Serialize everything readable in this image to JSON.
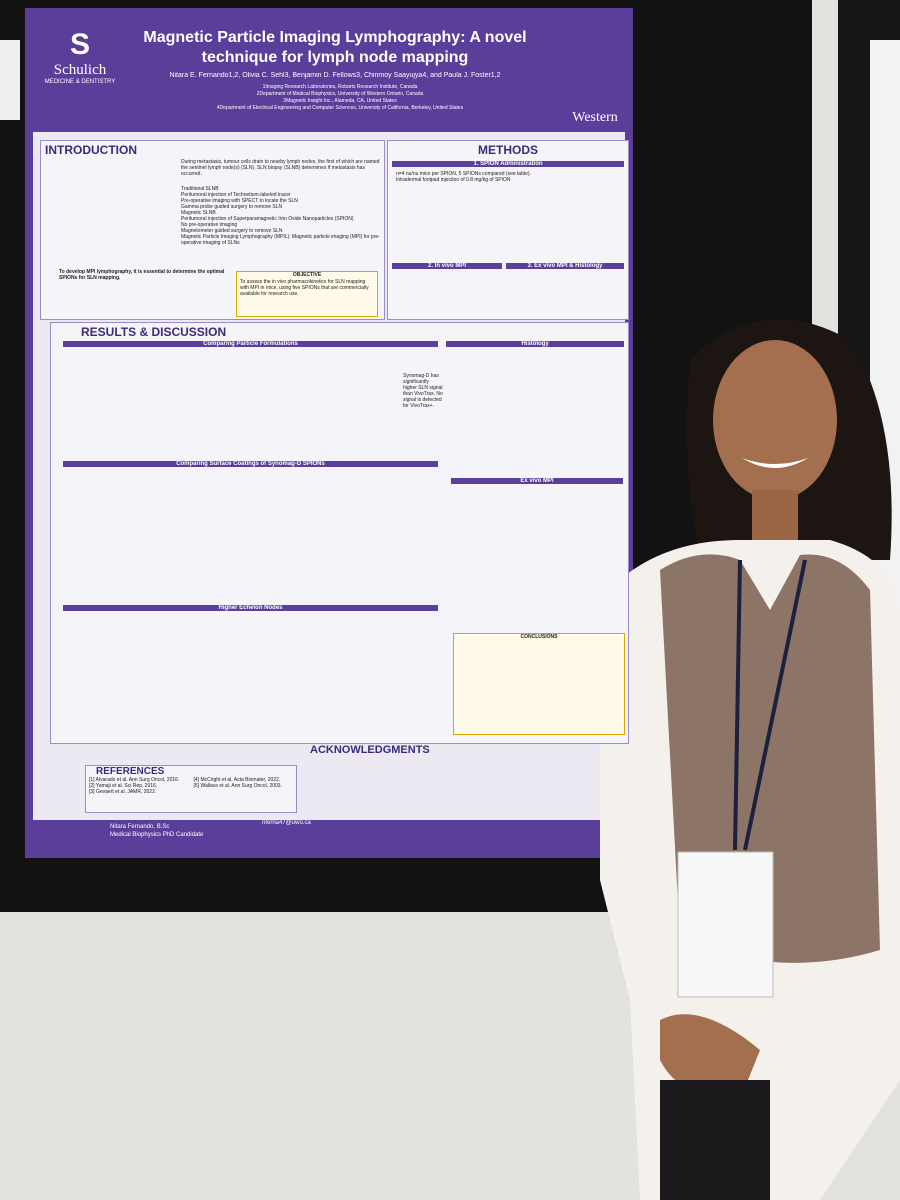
{
  "poster": {
    "logo_left": {
      "name": "Schulich",
      "sub": "MEDICINE & DENTISTRY"
    },
    "title": "Magnetic Particle Imaging Lymphography: A novel technique for lymph node mapping",
    "authors": "Nitara E. Fernando1,2, Olivia C. Sehl3, Benjamin D. Fellows3, Chinmoy Saayujya4, and Paula J. Foster1,2",
    "affiliations": [
      "1Imaging Research Laboratories, Robarts Research Institute, Canada",
      "2Department of Medical Biophysics, University of Western Ontario, Canada",
      "3Magnetic Insight Inc., Alameda, CA, United States",
      "4Department of Electrical Engineering and Computer Sciences, University of California, Berkeley, United States"
    ],
    "logo_right": "Western",
    "introduction": {
      "heading": "INTRODUCTION",
      "text": "During metastasis, tumour cells drain to nearby lymph nodes, the first of which are named the sentinel lymph node(s) (SLN). SLN biopsy (SLNB) determines if metastasis has occurred.",
      "items": [
        "Traditional SLNB",
        "Peritumoral injection of Technetium-labeled tracer",
        "Pre-operative imaging with SPECT to locate the SLN",
        "Gamma probe guided surgery to remove SLN",
        "Magnetic SLNB",
        "Peritumoral injection of Superparamagnetic Iron Oxide Nanoparticles (SPION)",
        "No pre-operative imaging",
        "Magnetometer guided surgery to remove SLN",
        "Magnetic Particle Imaging Lymphography (MPIL): Magnetic particle imaging (MPI) for pre-operative imaging of SLNs"
      ],
      "aim": "To develop MPI lymphography, it is essential to determine the optimal SPIONs for SLN mapping.",
      "objective_heading": "OBJECTIVE",
      "objective": "To assess the in vivo pharmacokinetics for SLN mapping with MPI in mice, using five SPIONs that are commercially available for research use."
    },
    "methods": {
      "heading": "METHODS",
      "sub": [
        "1. SPION Administration",
        "2. In vivo MPI",
        "3. Ex vivo MPI & Histology"
      ],
      "text": "n=4 nu/nu mice per SPION, 5 SPIONs compared (see table). Intradermal footpad injection of 0.8 mg/kg of SPION"
    },
    "results": {
      "heading": "RESULTS & DISCUSSION",
      "panels": [
        "Comparing Particle Formulations",
        "Histology",
        "Comparing Surface Coatings of Synomag-D SPIONs",
        "Ex vivo MPI",
        "Higher Echelon Nodes"
      ],
      "note": "Synomag-D has significantly higher SLN signal than VivoTrax. No signal is detected for VivoTrax+.",
      "conclusions_heading": "CONCLUSIONS"
    },
    "acknowledgments": "ACKNOWLEDGMENTS",
    "references": {
      "heading": "REFERENCES",
      "items": [
        "[1] Alvarado et al. Ann Surg Oncol, 2016.",
        "[2] Yamaji et al. Sci Rep, 2016.",
        "[3] Gevaert et al. JAMR, 2022.",
        "[4] McCright et al. Acta Biomater, 2022.",
        "[5] Wallace et al. Ann Surg Oncol, 2003."
      ]
    },
    "footer": {
      "name": "Nitara Fernando, B.Sc",
      "role": "Medical Biophysics PhD Candidate",
      "email": "nferna47@uwo.ca"
    }
  }
}
